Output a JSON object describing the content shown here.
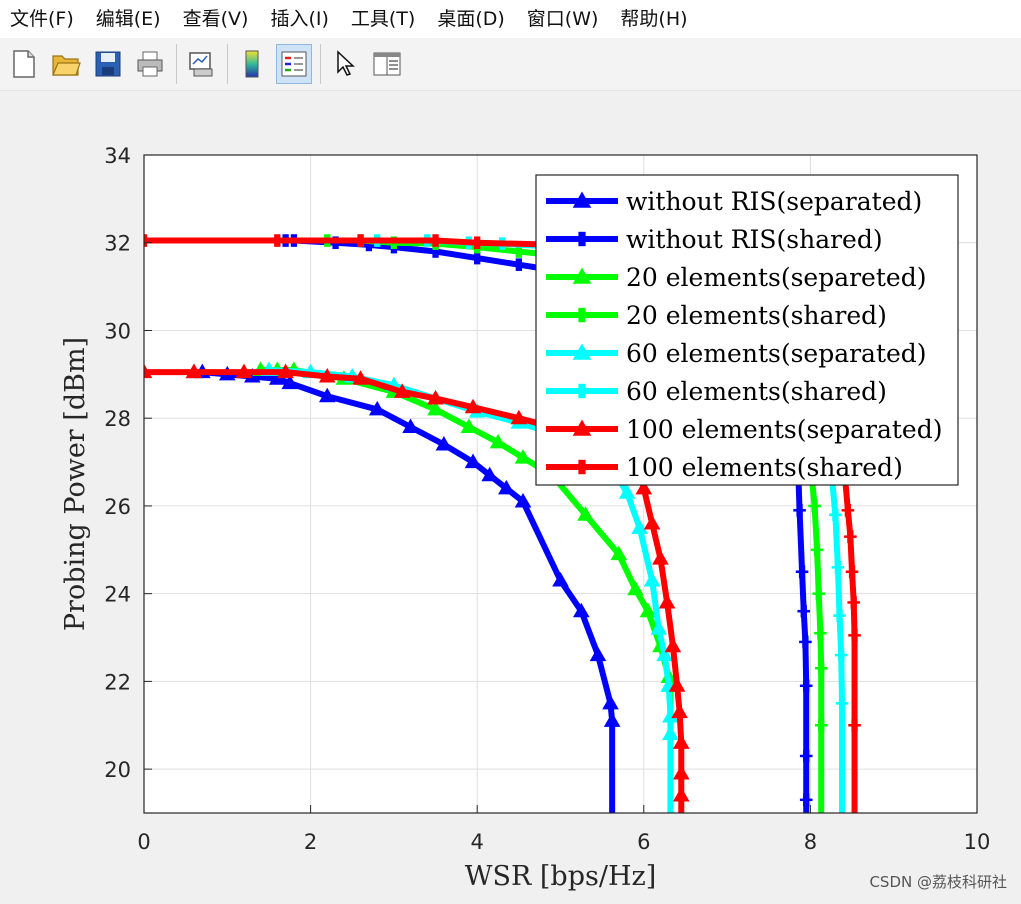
{
  "menubar": {
    "items": [
      "文件(F)",
      "编辑(E)",
      "查看(V)",
      "插入(I)",
      "工具(T)",
      "桌面(D)",
      "窗口(W)",
      "帮助(H)"
    ]
  },
  "toolbar": {
    "icons": [
      "new-file-icon",
      "open-folder-icon",
      "save-icon",
      "print-icon",
      "link-plot-icon",
      "colorbar-icon",
      "legend-icon",
      "pointer-icon",
      "property-editor-icon"
    ],
    "active": "legend-icon"
  },
  "watermark": "CSDN @荔枝科研社",
  "chart_data": {
    "type": "line",
    "xlabel": "WSR [bps/Hz]",
    "ylabel": "Probing Power [dBm]",
    "xlim": [
      0,
      10
    ],
    "ylim": [
      19,
      34
    ],
    "xticks": [
      0,
      2,
      4,
      6,
      8,
      10
    ],
    "yticks": [
      20,
      22,
      24,
      26,
      28,
      30,
      32,
      34
    ],
    "grid": true,
    "legend_position": "top-right",
    "series": [
      {
        "name": "without RIS(separated)",
        "color": "#0000ff",
        "marker": "triangle",
        "points": [
          [
            0.6,
            29.05
          ],
          [
            0.7,
            29.05
          ],
          [
            1.0,
            29.0
          ],
          [
            1.3,
            28.95
          ],
          [
            1.6,
            28.9
          ],
          [
            1.75,
            28.8
          ],
          [
            2.2,
            28.5
          ],
          [
            2.8,
            28.2
          ],
          [
            3.2,
            27.8
          ],
          [
            3.6,
            27.4
          ],
          [
            3.95,
            27.0
          ],
          [
            4.15,
            26.7
          ],
          [
            4.35,
            26.4
          ],
          [
            4.55,
            26.1
          ],
          [
            5.0,
            24.3
          ],
          [
            5.25,
            23.6
          ],
          [
            5.45,
            22.6
          ],
          [
            5.6,
            21.5
          ],
          [
            5.62,
            21.1
          ],
          [
            5.62,
            19.0
          ]
        ]
      },
      {
        "name": "without RIS(shared)",
        "color": "#0000ff",
        "marker": "square",
        "points": [
          [
            1.7,
            32.05
          ],
          [
            1.8,
            32.05
          ],
          [
            2.3,
            32.0
          ],
          [
            2.7,
            31.95
          ],
          [
            3.0,
            31.9
          ],
          [
            3.5,
            31.8
          ],
          [
            4.0,
            31.65
          ],
          [
            4.5,
            31.5
          ],
          [
            5.0,
            31.35
          ],
          [
            5.5,
            31.15
          ],
          [
            6.0,
            30.9
          ],
          [
            6.5,
            30.6
          ],
          [
            7.0,
            30.2
          ],
          [
            7.5,
            29.5
          ],
          [
            7.7,
            28.8
          ],
          [
            7.8,
            28.0
          ],
          [
            7.85,
            27.0
          ],
          [
            7.87,
            25.9
          ],
          [
            7.9,
            24.5
          ],
          [
            7.92,
            23.6
          ],
          [
            7.94,
            22.9
          ],
          [
            7.95,
            21.9
          ],
          [
            7.95,
            20.3
          ],
          [
            7.95,
            19.3
          ],
          [
            7.95,
            19.0
          ]
        ]
      },
      {
        "name": "20 elements(separeted)",
        "color": "#00ff00",
        "marker": "triangle",
        "points": [
          [
            1.4,
            29.1
          ],
          [
            1.6,
            29.1
          ],
          [
            1.8,
            29.1
          ],
          [
            2.4,
            28.9
          ],
          [
            3.0,
            28.6
          ],
          [
            3.5,
            28.2
          ],
          [
            3.9,
            27.8
          ],
          [
            4.25,
            27.45
          ],
          [
            4.55,
            27.1
          ],
          [
            4.9,
            26.7
          ],
          [
            5.3,
            25.8
          ],
          [
            5.7,
            24.9
          ],
          [
            5.9,
            24.1
          ],
          [
            6.05,
            23.6
          ],
          [
            6.2,
            22.8
          ],
          [
            6.3,
            22.1
          ],
          [
            6.32,
            21.9
          ],
          [
            6.32,
            19.0
          ]
        ]
      },
      {
        "name": "20 elements(shared)",
        "color": "#00ff00",
        "marker": "square",
        "points": [
          [
            2.2,
            32.05
          ],
          [
            2.6,
            32.05
          ],
          [
            3.0,
            32.0
          ],
          [
            3.5,
            31.98
          ],
          [
            4.0,
            31.9
          ],
          [
            4.5,
            31.8
          ],
          [
            5.0,
            31.7
          ],
          [
            5.5,
            31.55
          ],
          [
            6.0,
            31.3
          ],
          [
            6.5,
            31.0
          ],
          [
            7.0,
            30.5
          ],
          [
            7.5,
            29.8
          ],
          [
            7.8,
            29.0
          ],
          [
            7.95,
            28.0
          ],
          [
            8.0,
            27.0
          ],
          [
            8.05,
            26.0
          ],
          [
            8.08,
            25.0
          ],
          [
            8.1,
            24.0
          ],
          [
            8.12,
            23.1
          ],
          [
            8.13,
            22.3
          ],
          [
            8.13,
            21.0
          ],
          [
            8.13,
            19.0
          ]
        ]
      },
      {
        "name": "60 elements(separated)",
        "color": "#00ffff",
        "marker": "triangle",
        "points": [
          [
            1.5,
            29.1
          ],
          [
            2.0,
            29.05
          ],
          [
            2.5,
            28.95
          ],
          [
            3.0,
            28.75
          ],
          [
            3.5,
            28.45
          ],
          [
            4.0,
            28.15
          ],
          [
            4.5,
            27.9
          ],
          [
            5.0,
            27.6
          ],
          [
            5.5,
            27.2
          ],
          [
            5.8,
            26.3
          ],
          [
            5.95,
            25.5
          ],
          [
            6.1,
            24.3
          ],
          [
            6.18,
            23.2
          ],
          [
            6.25,
            22.6
          ],
          [
            6.3,
            21.9
          ],
          [
            6.32,
            21.2
          ],
          [
            6.32,
            20.8
          ],
          [
            6.32,
            19.0
          ]
        ]
      },
      {
        "name": "60 elements(shared)",
        "color": "#00ffff",
        "marker": "square",
        "points": [
          [
            2.8,
            32.05
          ],
          [
            3.4,
            32.05
          ],
          [
            3.9,
            32.0
          ],
          [
            4.3,
            31.98
          ],
          [
            5.0,
            31.9
          ],
          [
            5.5,
            31.8
          ],
          [
            6.0,
            31.6
          ],
          [
            6.5,
            31.35
          ],
          [
            7.0,
            31.0
          ],
          [
            7.5,
            30.4
          ],
          [
            7.9,
            29.5
          ],
          [
            8.1,
            28.5
          ],
          [
            8.2,
            27.6
          ],
          [
            8.25,
            26.8
          ],
          [
            8.3,
            25.8
          ],
          [
            8.33,
            24.6
          ],
          [
            8.35,
            23.5
          ],
          [
            8.37,
            22.6
          ],
          [
            8.38,
            21.5
          ],
          [
            8.38,
            19.0
          ]
        ]
      },
      {
        "name": "100 elements(separated)",
        "color": "#ff0000",
        "marker": "triangle",
        "points": [
          [
            0.0,
            29.05
          ],
          [
            0.6,
            29.05
          ],
          [
            1.2,
            29.05
          ],
          [
            1.7,
            29.05
          ],
          [
            2.2,
            28.95
          ],
          [
            2.6,
            28.9
          ],
          [
            3.1,
            28.6
          ],
          [
            3.5,
            28.45
          ],
          [
            3.95,
            28.25
          ],
          [
            4.5,
            28.0
          ],
          [
            5.0,
            27.75
          ],
          [
            5.5,
            27.5
          ],
          [
            5.9,
            27.2
          ],
          [
            6.0,
            26.4
          ],
          [
            6.1,
            25.6
          ],
          [
            6.2,
            24.8
          ],
          [
            6.28,
            23.8
          ],
          [
            6.35,
            22.8
          ],
          [
            6.4,
            21.9
          ],
          [
            6.43,
            21.3
          ],
          [
            6.45,
            20.6
          ],
          [
            6.45,
            19.9
          ],
          [
            6.45,
            19.4
          ],
          [
            6.45,
            19.0
          ]
        ]
      },
      {
        "name": "100 elements(shared)",
        "color": "#ff0000",
        "marker": "square",
        "points": [
          [
            0.0,
            32.05
          ],
          [
            1.6,
            32.05
          ],
          [
            2.6,
            32.05
          ],
          [
            3.5,
            32.05
          ],
          [
            4.0,
            32.0
          ],
          [
            5.0,
            31.95
          ],
          [
            5.5,
            31.85
          ],
          [
            6.0,
            31.7
          ],
          [
            6.5,
            31.5
          ],
          [
            7.0,
            31.1
          ],
          [
            7.5,
            30.5
          ],
          [
            8.0,
            29.5
          ],
          [
            8.3,
            28.3
          ],
          [
            8.4,
            27.0
          ],
          [
            8.45,
            25.9
          ],
          [
            8.48,
            25.3
          ],
          [
            8.5,
            24.5
          ],
          [
            8.52,
            23.8
          ],
          [
            8.53,
            23.05
          ],
          [
            8.53,
            21.0
          ],
          [
            8.53,
            19.0
          ]
        ]
      }
    ]
  }
}
